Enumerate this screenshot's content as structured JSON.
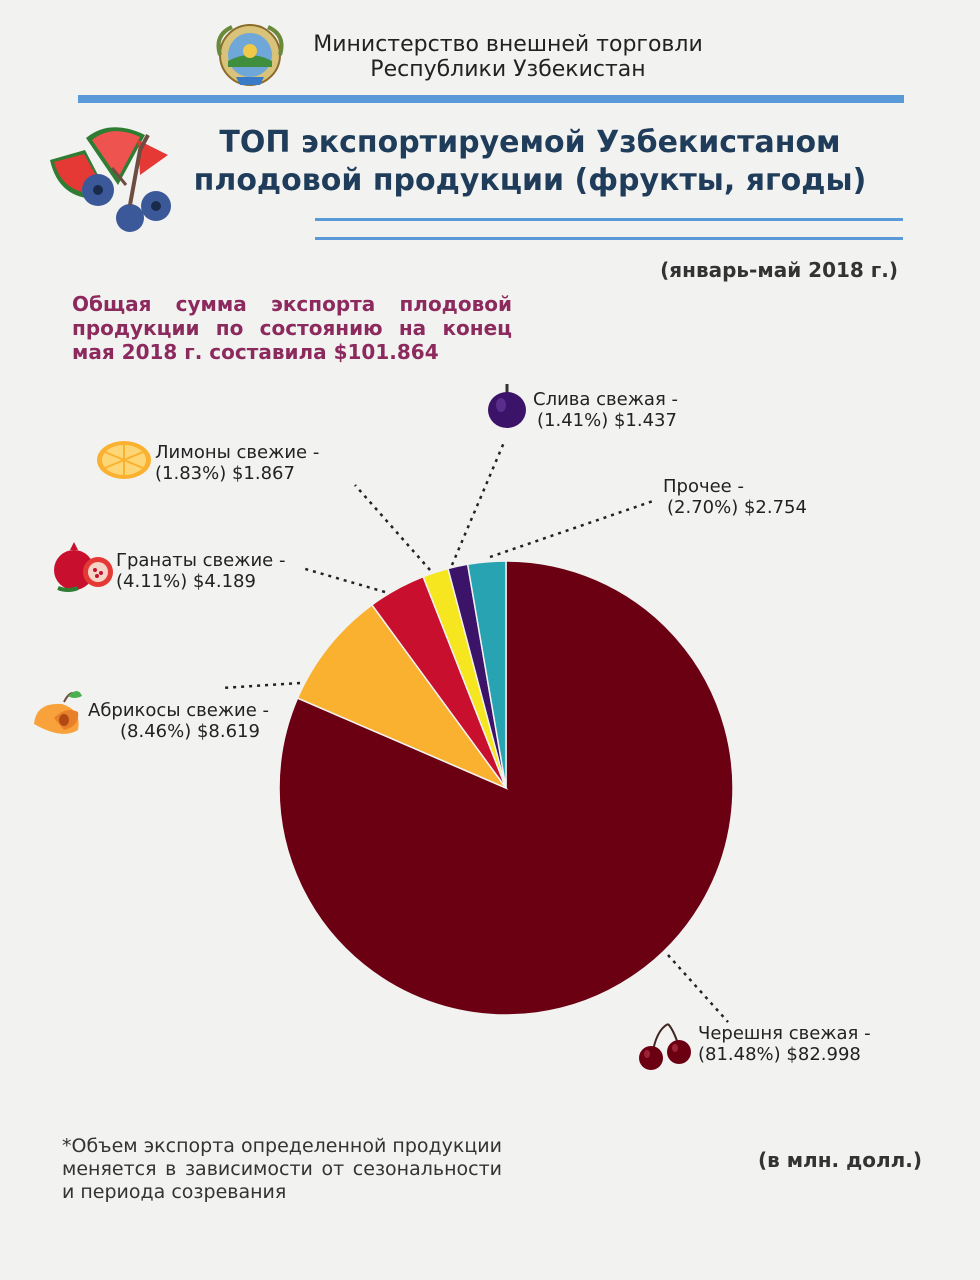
{
  "header": {
    "ministry_line1": "Министерство внешней торговли",
    "ministry_line2": "Республики Узбекистан"
  },
  "title": {
    "line1": "ТОП экспортируемой Узбекистаном",
    "line2": "плодовой продукции (фрукты, ягоды)"
  },
  "period": "(январь-май 2018 г.)",
  "total_text": "Общая сумма экспорта плодовой продукции по состоянию на конец мая 2018 г. составила $101.864",
  "footnote": "*Объем экспорта определенной продукции меняется в зависимости от сезональности и периода созревания",
  "units": "(в млн. долл.)",
  "chart_data": {
    "type": "pie",
    "title": "",
    "total": 101.864,
    "units": "млн. долл.",
    "slices": [
      {
        "name": "Черешня свежая  -",
        "percent_label": "(81.48%)",
        "value_label": "$82.998",
        "percent": 81.48,
        "value": 82.998,
        "color": "#6b0012"
      },
      {
        "name": "Абрикосы свежие -",
        "percent_label": "(8.46%)",
        "value_label": "$8.619",
        "percent": 8.46,
        "value": 8.619,
        "color": "#fbb130"
      },
      {
        "name": "Гранаты свежие -",
        "percent_label": "(4.11%)",
        "value_label": "$4.189",
        "percent": 4.11,
        "value": 4.189,
        "color": "#c8102e"
      },
      {
        "name": "Лимоны свежие -",
        "percent_label": "(1.83%)",
        "value_label": "$1.867",
        "percent": 1.83,
        "value": 1.867,
        "color": "#f5e620"
      },
      {
        "name": "Слива свежая -",
        "percent_label": "(1.41%)",
        "value_label": "$1.437",
        "percent": 1.41,
        "value": 1.437,
        "color": "#3b1369"
      },
      {
        "name": "Прочее -",
        "percent_label": "(2.70%)",
        "value_label": "$2.754",
        "percent": 2.7,
        "value": 2.754,
        "color": "#28a3b2"
      }
    ]
  },
  "icons": [
    "emblem-icon",
    "watermelon-blueberry-icon",
    "plum-icon",
    "lemon-icon",
    "pomegranate-icon",
    "apricot-icon",
    "cherry-icon"
  ]
}
